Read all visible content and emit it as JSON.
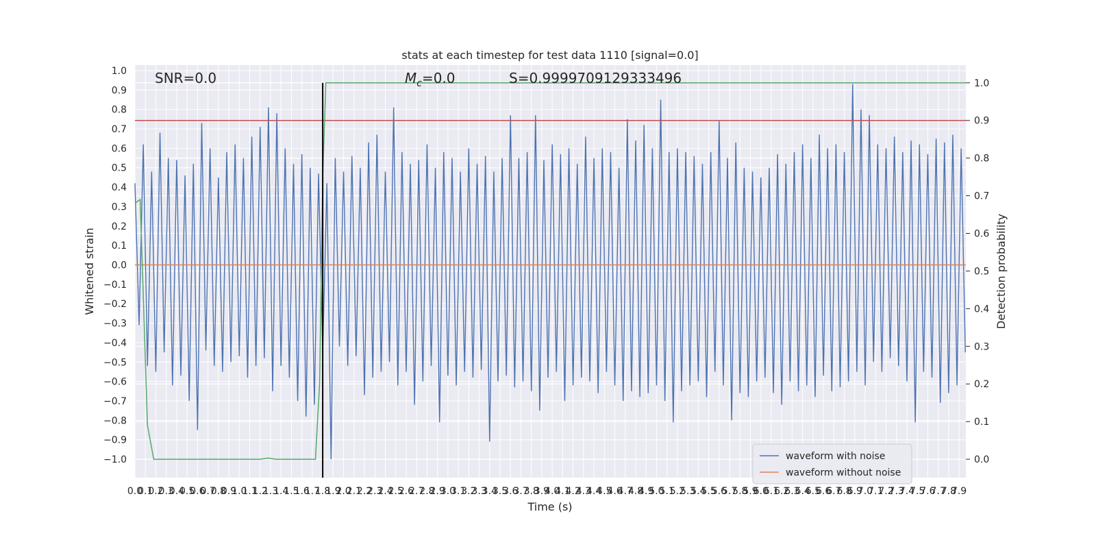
{
  "chart_data": {
    "type": "line",
    "title": "stats at each timestep for test data 1110 [signal=0.0]",
    "xlabel": "Time (s)",
    "ylabel": "Whitened strain",
    "y2label": "Detection probability",
    "annotations": {
      "snr": "SNR=0.0",
      "mc_symbol": "M",
      "mc_sub": "c",
      "mc_value": "=0.0",
      "s": "S=0.9999709129333496"
    },
    "xlim": [
      0,
      7.965
    ],
    "ylim": [
      -1.095,
      1.028
    ],
    "y2lim": [
      -0.049,
      1.047
    ],
    "grid": true,
    "legend_loc": "lower right",
    "vline_x": 1.8,
    "vline_color": "#000000",
    "xticks": [
      {
        "value": 0,
        "label": "0.0"
      },
      0.1,
      0.2,
      0.3,
      0.4,
      0.5,
      0.6,
      0.7,
      0.8,
      0.9,
      {
        "value": 1,
        "label": "1.0"
      },
      1.1,
      1.2,
      1.3,
      1.4,
      1.5,
      1.6,
      1.7,
      1.8,
      1.9,
      {
        "value": 2,
        "label": "2.0"
      },
      2.1,
      2.2,
      2.3,
      2.4,
      2.5,
      2.6,
      2.7,
      2.8,
      2.9,
      {
        "value": 3,
        "label": "3.0"
      },
      3.1,
      3.2,
      3.3,
      3.4,
      3.5,
      3.6,
      3.7,
      3.8,
      3.9,
      {
        "value": 4,
        "label": "4.0"
      },
      4.1,
      4.2,
      4.3,
      4.4,
      4.5,
      4.6,
      4.7,
      4.8,
      4.9,
      {
        "value": 5,
        "label": "5.0"
      },
      5.1,
      5.2,
      5.3,
      5.4,
      5.5,
      5.6,
      5.7,
      5.8,
      5.9,
      {
        "value": 6,
        "label": "6.0"
      },
      6.1,
      6.2,
      6.3,
      6.4,
      6.5,
      6.6,
      6.7,
      6.8,
      6.9,
      {
        "value": 7,
        "label": "7.0"
      },
      7.1,
      7.2,
      7.3,
      7.4,
      7.5,
      7.6,
      7.7,
      7.8,
      7.9
    ],
    "yticks": [
      {
        "value": 1,
        "label": "1.0"
      },
      0.9,
      0.8,
      0.7,
      0.6,
      0.5,
      0.4,
      0.3,
      0.2,
      0.1,
      {
        "value": 0,
        "label": "0.0"
      },
      {
        "value": -0.1,
        "label": "−0.1"
      },
      {
        "value": -0.2,
        "label": "−0.2"
      },
      {
        "value": -0.3,
        "label": "−0.3"
      },
      {
        "value": -0.4,
        "label": "−0.4"
      },
      {
        "value": -0.5,
        "label": "−0.5"
      },
      {
        "value": -0.6,
        "label": "−0.6"
      },
      {
        "value": -0.7,
        "label": "−0.7"
      },
      {
        "value": -0.8,
        "label": "−0.8"
      },
      {
        "value": -0.9,
        "label": "−0.9"
      },
      {
        "value": -1,
        "label": "−1.0"
      }
    ],
    "y2ticks": [
      {
        "value": 0,
        "label": "0.0"
      },
      0.1,
      0.2,
      0.3,
      0.4,
      0.5,
      0.6,
      0.7,
      0.8,
      0.9,
      {
        "value": 1,
        "label": "1.0"
      }
    ],
    "series": [
      {
        "name": "waveform with noise",
        "color": "#4c72b0",
        "x": [
          0,
          0.04,
          0.08,
          0.12,
          0.16,
          0.2,
          0.24,
          0.28,
          0.32,
          0.36,
          0.4,
          0.44,
          0.48,
          0.52,
          0.56,
          0.6,
          0.64,
          0.68,
          0.72,
          0.76,
          0.8,
          0.84,
          0.88,
          0.92,
          0.96,
          1,
          1.04,
          1.08,
          1.12,
          1.16,
          1.2,
          1.24,
          1.28,
          1.32,
          1.36,
          1.4,
          1.44,
          1.48,
          1.52,
          1.56,
          1.6,
          1.64,
          1.68,
          1.72,
          1.76,
          1.8,
          1.84,
          1.88,
          1.92,
          1.96,
          2,
          2.04,
          2.08,
          2.12,
          2.16,
          2.2,
          2.24,
          2.28,
          2.32,
          2.36,
          2.4,
          2.44,
          2.48,
          2.52,
          2.56,
          2.6,
          2.64,
          2.68,
          2.72,
          2.76,
          2.8,
          2.84,
          2.88,
          2.92,
          2.96,
          3,
          3.04,
          3.08,
          3.12,
          3.16,
          3.2,
          3.24,
          3.28,
          3.32,
          3.36,
          3.4,
          3.44,
          3.48,
          3.52,
          3.56,
          3.6,
          3.64,
          3.68,
          3.72,
          3.76,
          3.8,
          3.84,
          3.88,
          3.92,
          3.96,
          4,
          4.04,
          4.08,
          4.12,
          4.16,
          4.2,
          4.24,
          4.28,
          4.32,
          4.36,
          4.4,
          4.44,
          4.48,
          4.52,
          4.56,
          4.6,
          4.64,
          4.68,
          4.72,
          4.76,
          4.8,
          4.84,
          4.88,
          4.92,
          4.96,
          5,
          5.04,
          5.08,
          5.12,
          5.16,
          5.2,
          5.24,
          5.28,
          5.32,
          5.36,
          5.4,
          5.44,
          5.48,
          5.52,
          5.56,
          5.6,
          5.64,
          5.68,
          5.72,
          5.76,
          5.8,
          5.84,
          5.88,
          5.92,
          5.96,
          6,
          6.04,
          6.08,
          6.12,
          6.16,
          6.2,
          6.24,
          6.28,
          6.32,
          6.36,
          6.4,
          6.44,
          6.48,
          6.52,
          6.56,
          6.6,
          6.64,
          6.68,
          6.72,
          6.76,
          6.8,
          6.84,
          6.88,
          6.92,
          6.96,
          7,
          7.04,
          7.08,
          7.12,
          7.16,
          7.2,
          7.24,
          7.28,
          7.32,
          7.36,
          7.4,
          7.44,
          7.48,
          7.52,
          7.56,
          7.6,
          7.64,
          7.68,
          7.72,
          7.76,
          7.8,
          7.84,
          7.88,
          7.92,
          7.96
        ],
        "values": [
          0.42,
          -0.31,
          0.62,
          -0.52,
          0.48,
          -0.55,
          0.68,
          -0.45,
          0.55,
          -0.62,
          0.54,
          -0.57,
          0.46,
          -0.7,
          0.52,
          -0.85,
          0.73,
          -0.44,
          0.6,
          -0.52,
          0.45,
          -0.55,
          0.58,
          -0.5,
          0.62,
          -0.47,
          0.55,
          -0.58,
          0.66,
          -0.52,
          0.71,
          -0.48,
          0.81,
          -0.65,
          0.78,
          -0.52,
          0.6,
          -0.58,
          0.52,
          -0.7,
          0.57,
          -0.78,
          0.5,
          -0.72,
          0.47,
          -0.45,
          0.42,
          -1.0,
          0.55,
          -0.42,
          0.48,
          -0.52,
          0.56,
          -0.47,
          0.5,
          -0.67,
          0.63,
          -0.58,
          0.67,
          -0.55,
          0.48,
          -0.5,
          0.81,
          -0.62,
          0.58,
          -0.55,
          0.52,
          -0.72,
          0.54,
          -0.6,
          0.62,
          -0.52,
          0.5,
          -0.81,
          0.58,
          -0.57,
          0.55,
          -0.62,
          0.48,
          -0.55,
          0.6,
          -0.58,
          0.52,
          -0.54,
          0.56,
          -0.91,
          0.48,
          -0.6,
          0.55,
          -0.57,
          0.77,
          -0.63,
          0.55,
          -0.6,
          0.58,
          -0.65,
          0.77,
          -0.75,
          0.54,
          -0.58,
          0.62,
          -0.55,
          0.57,
          -0.7,
          0.6,
          -0.62,
          0.52,
          -0.58,
          0.66,
          -0.6,
          0.55,
          -0.66,
          0.6,
          -0.55,
          0.58,
          -0.62,
          0.5,
          -0.7,
          0.75,
          -0.65,
          0.64,
          -0.68,
          0.72,
          -0.66,
          0.6,
          -0.62,
          0.85,
          -0.7,
          0.58,
          -0.81,
          0.6,
          -0.65,
          0.58,
          -0.62,
          0.56,
          -0.6,
          0.52,
          -0.68,
          0.58,
          -0.55,
          0.74,
          -0.62,
          0.55,
          -0.8,
          0.63,
          -0.66,
          0.5,
          -0.68,
          0.48,
          -0.6,
          0.45,
          -0.58,
          0.5,
          -0.66,
          0.57,
          -0.72,
          0.52,
          -0.6,
          0.58,
          -0.65,
          0.62,
          -0.62,
          0.55,
          -0.68,
          0.67,
          -0.57,
          0.6,
          -0.65,
          0.62,
          -0.63,
          0.58,
          -0.6,
          0.93,
          -0.55,
          0.8,
          -0.62,
          0.77,
          -0.5,
          0.62,
          -0.55,
          0.6,
          -0.48,
          0.66,
          -0.52,
          0.58,
          -0.6,
          0.64,
          -0.81,
          0.62,
          -0.55,
          0.57,
          -0.58,
          0.65,
          -0.71,
          0.63,
          -0.66,
          0.67,
          -0.62,
          0.6,
          -0.45
        ]
      },
      {
        "name": "waveform without noise",
        "color": "#dd8452",
        "x": [
          0,
          7.965
        ],
        "values": [
          0,
          0
        ]
      },
      {
        "color": "#c44e52",
        "axis": "y2",
        "x": [
          0,
          7.965
        ],
        "values": [
          0.9,
          0.9
        ]
      },
      {
        "color": "#55a868",
        "axis": "y2",
        "x": [
          0,
          0.05,
          0.12,
          0.18,
          1.2,
          1.28,
          1.35,
          1.73,
          1.77,
          1.8,
          1.83,
          7.965
        ],
        "values": [
          0.68,
          0.69,
          0.09,
          0,
          0,
          0.003,
          0,
          0,
          0.2,
          0.75,
          1.0,
          1.0
        ]
      }
    ]
  }
}
